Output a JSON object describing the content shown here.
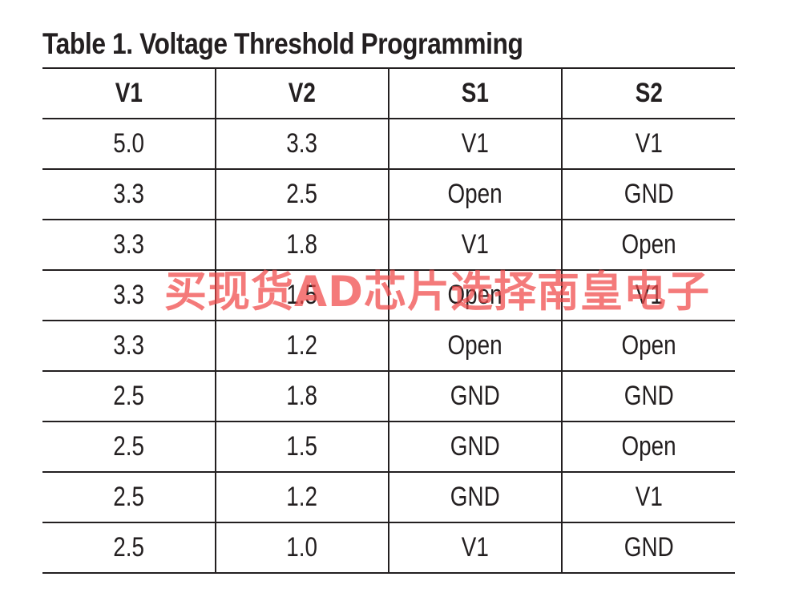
{
  "title": "Table 1. Voltage Threshold Programming",
  "table": {
    "headers": [
      "V1",
      "V2",
      "S1",
      "S2"
    ],
    "rows": [
      [
        "5.0",
        "3.3",
        "V1",
        "V1"
      ],
      [
        "3.3",
        "2.5",
        "Open",
        "GND"
      ],
      [
        "3.3",
        "1.8",
        "V1",
        "Open"
      ],
      [
        "3.3",
        "1.5",
        "Open",
        "V1"
      ],
      [
        "3.3",
        "1.2",
        "Open",
        "Open"
      ],
      [
        "2.5",
        "1.8",
        "GND",
        "GND"
      ],
      [
        "2.5",
        "1.5",
        "GND",
        "Open"
      ],
      [
        "2.5",
        "1.2",
        "GND",
        "V1"
      ],
      [
        "2.5",
        "1.0",
        "V1",
        "GND"
      ]
    ]
  },
  "watermark": {
    "text": "买现货AD芯片选择南皇电子",
    "color": "#f04646"
  }
}
